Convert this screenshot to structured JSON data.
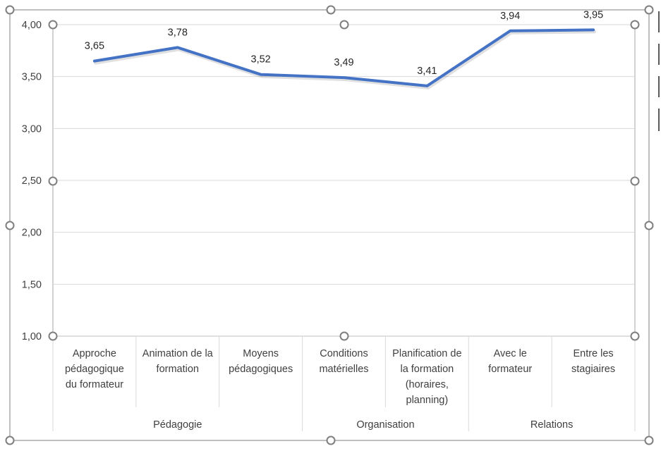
{
  "chart_data": {
    "type": "line",
    "title": "",
    "xlabel": "",
    "ylabel": "",
    "ylim": [
      1.0,
      4.0
    ],
    "yticks": [
      "1,00",
      "1,50",
      "2,00",
      "2,50",
      "3,00",
      "3,50",
      "4,00"
    ],
    "yticks_values": [
      1.0,
      1.5,
      2.0,
      2.5,
      3.0,
      3.5,
      4.0
    ],
    "grid": true,
    "legend": "none",
    "series_color": "#4472C4",
    "categories": [
      [
        "Approche",
        "pédagogique",
        "du formateur"
      ],
      [
        "Animation de la",
        "formation"
      ],
      [
        "Moyens",
        "pédagogiques"
      ],
      [
        "Conditions",
        "matérielles"
      ],
      [
        "Planification de",
        "la formation",
        "(horaires,",
        "planning)"
      ],
      [
        "Avec le",
        "formateur"
      ],
      [
        "Entre les",
        "stagiaires"
      ]
    ],
    "groups": [
      {
        "label": "Pédagogie",
        "start": 0,
        "end": 2
      },
      {
        "label": "Organisation",
        "start": 3,
        "end": 4
      },
      {
        "label": "Relations",
        "start": 5,
        "end": 6
      }
    ],
    "values": [
      3.65,
      3.78,
      3.52,
      3.49,
      3.41,
      3.94,
      3.95
    ],
    "data_labels": [
      "3,65",
      "3,78",
      "3,52",
      "3,49",
      "3,41",
      "3,94",
      "3,95"
    ]
  }
}
